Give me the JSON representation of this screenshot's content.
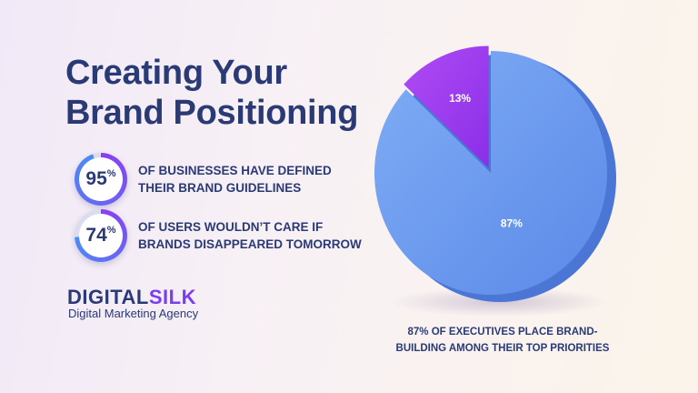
{
  "title": {
    "line1": "Creating Your",
    "line2": "Brand Positioning"
  },
  "stats": [
    {
      "value": 95,
      "value_text": "95",
      "unit": "%",
      "line1": "OF BUSINESSES HAVE DEFINED",
      "line2": "THEIR BRAND GUIDELINES"
    },
    {
      "value": 74,
      "value_text": "74",
      "unit": "%",
      "line1": "OF USERS WOULDN’T CARE IF",
      "line2": "BRANDS DISAPPEARED TOMORROW"
    }
  ],
  "brand": {
    "name_part1": "DIGITAL",
    "name_part2": "SILK",
    "tagline": "Digital Marketing Agency"
  },
  "chart_data": {
    "type": "pie",
    "categories": [
      "87%",
      "13%"
    ],
    "values": [
      87,
      13
    ],
    "colors": [
      "#6b9af0",
      "#9c3af0"
    ],
    "title": "",
    "caption_line1": "87% OF EXECUTIVES PLACE BRAND-",
    "caption_line2": "BUILDING AMONG THEIR TOP PRIORITIES"
  },
  "colors": {
    "text": "#2a3a75",
    "accent": "#7b3df0",
    "ring_start": "#8a3df2",
    "ring_end": "#4a8df5"
  }
}
